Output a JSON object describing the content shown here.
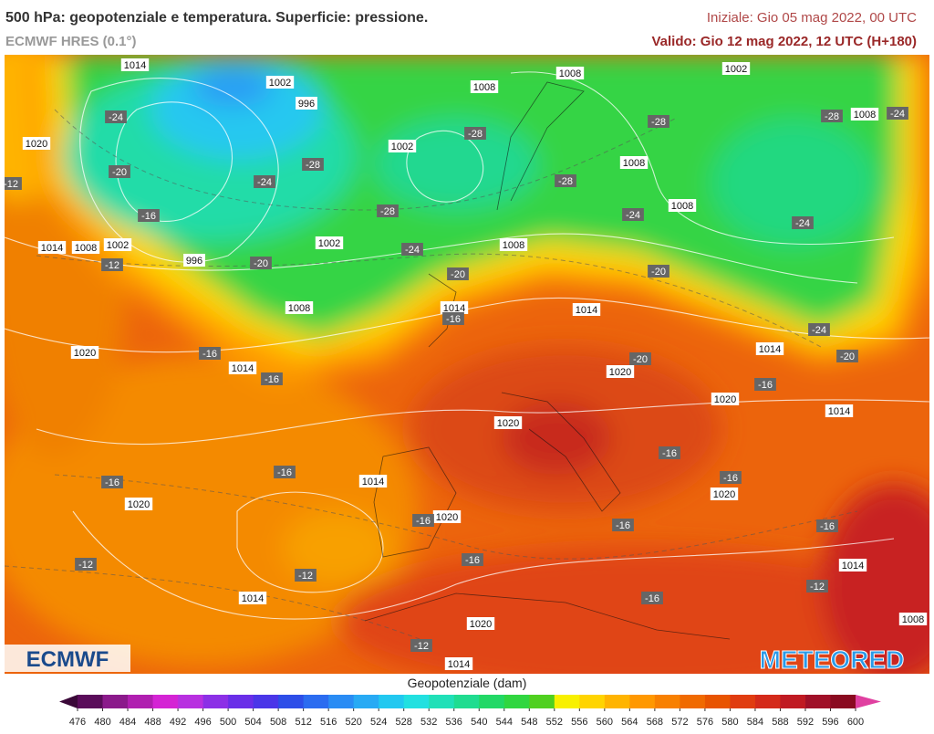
{
  "header": {
    "title": "500 hPa: geopotenziale e temperatura. Superficie: pressione.",
    "subtitle": "ECMWF HRES (0.1°)",
    "initial": "Iniziale: Gio 05 mag 2022, 00 UTC",
    "valid": "Valido: Gio 12 mag 2022, 12 UTC (H+180)"
  },
  "logos": {
    "left": "ECMWF",
    "right": "METEORED"
  },
  "map": {
    "isobar_labels": [
      1014,
      1002,
      996,
      1008,
      1008,
      1002,
      1020,
      1002,
      1008,
      1008,
      1008,
      1014,
      1008,
      1002,
      996,
      1002,
      1008,
      1008,
      1014,
      1014,
      1020,
      1014,
      1014,
      1020,
      1020,
      1014,
      1020,
      1014,
      1020,
      1020,
      1020,
      1014,
      1014,
      1008,
      1020,
      1014
    ],
    "temperature_labels": [
      -24,
      -20,
      -16,
      -12,
      -12,
      -28,
      -24,
      -28,
      -28,
      -24,
      -20,
      -20,
      -28,
      -28,
      -24,
      -20,
      -28,
      -24,
      -24,
      -24,
      -20,
      -16,
      -20,
      -16,
      -16,
      -16,
      -16,
      -16,
      -16,
      -16,
      -16,
      -16,
      -12,
      -12,
      -16,
      -16,
      -12,
      -12,
      -16
    ]
  },
  "colorbar": {
    "title": "Geopotenziale (dam)",
    "ticks": [
      476,
      480,
      484,
      488,
      492,
      496,
      500,
      504,
      508,
      512,
      516,
      520,
      524,
      528,
      532,
      536,
      540,
      544,
      548,
      552,
      556,
      560,
      564,
      568,
      572,
      576,
      580,
      584,
      588,
      592,
      596,
      600
    ],
    "colors": [
      "#5a0c5a",
      "#8b1a8b",
      "#b01fb0",
      "#d424d4",
      "#b830e0",
      "#8c30e6",
      "#6a2ee8",
      "#4a36e8",
      "#2d4ee8",
      "#2b6cf0",
      "#2a8cf4",
      "#28aaf4",
      "#22c8f0",
      "#22e0e0",
      "#20e0b8",
      "#20dc90",
      "#22d866",
      "#30d640",
      "#50d020",
      "#f8f000",
      "#ffd400",
      "#ffb400",
      "#ff9800",
      "#f88000",
      "#f06a00",
      "#e85400",
      "#e03c10",
      "#d42a1a",
      "#c01a22",
      "#a01028",
      "#8a0a20"
    ],
    "extend_colors": [
      "#3a0838",
      "#e040a0"
    ]
  }
}
